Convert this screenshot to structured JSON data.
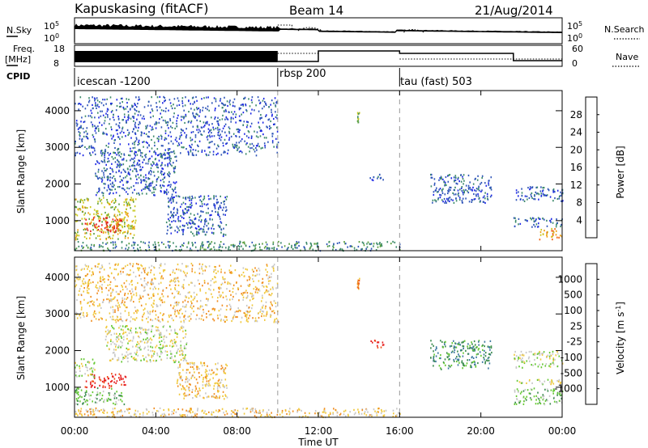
{
  "header": {
    "station": "Kapuskasing (fitACF)",
    "beam": "Beam 14",
    "date": "21/Aug/2014"
  },
  "status_panels": {
    "nsky_label": "N.Sky",
    "nsky_ticks": [
      "10^5",
      "10^0"
    ],
    "nsearch_label": "N.Search",
    "nsearch_ticks": [
      "10^5",
      "10^0"
    ],
    "freq_label": "Freq.",
    "freq_unit": "[MHz]",
    "freq_ticks": [
      "18",
      "8"
    ],
    "nave_label": "Nave",
    "nave_ticks": [
      "60",
      "0"
    ],
    "cpid_label": "CPID",
    "modes": [
      {
        "name": "icescan -1200",
        "start_hour": 0,
        "end_hour": 10
      },
      {
        "name": "rbsp 200",
        "start_hour": 10,
        "end_hour": 16
      },
      {
        "name": "tau (fast) 503",
        "start_hour": 16,
        "end_hour": 24
      }
    ]
  },
  "chart_data": [
    {
      "type": "heatmap",
      "name": "power",
      "ylabel": "Slant Range [km]",
      "yticks": [
        1000,
        2000,
        3000,
        4000
      ],
      "ylim": [
        180,
        4550
      ],
      "xlim": [
        0,
        24
      ],
      "colorbar_label": "Power [dB]",
      "colorbar_ticks": [
        "4",
        "8",
        "12",
        "16",
        "20",
        "24",
        "28"
      ],
      "colorbar_colors": [
        "#1e28e6",
        "#2f55b8",
        "#3c8a6a",
        "#5ca040",
        "#c8c81e",
        "#f0a014",
        "#f06414",
        "#e61e1e"
      ],
      "echo_regions": [
        {
          "x": [
            0.0,
            3.0
          ],
          "y": [
            500,
            1650
          ],
          "level": 4
        },
        {
          "x": [
            0.5,
            2.3
          ],
          "y": [
            700,
            1100
          ],
          "level": 7
        },
        {
          "x": [
            1.0,
            5.0
          ],
          "y": [
            1700,
            2900
          ],
          "level": 1
        },
        {
          "x": [
            4.5,
            7.5
          ],
          "y": [
            600,
            1700
          ],
          "level": 1
        },
        {
          "x": [
            0.0,
            16.0
          ],
          "y": [
            200,
            450
          ],
          "level": 2
        },
        {
          "x": [
            21.6,
            24.0
          ],
          "y": [
            1550,
            1950
          ],
          "level": 1
        },
        {
          "x": [
            21.6,
            24.0
          ],
          "y": [
            850,
            1100
          ],
          "level": 1
        },
        {
          "x": [
            22.8,
            24.0
          ],
          "y": [
            500,
            800
          ],
          "level": 5
        },
        {
          "x": [
            14.5,
            15.2
          ],
          "y": [
            2100,
            2300
          ],
          "level": 1
        },
        {
          "x": [
            13.9,
            14.0
          ],
          "y": [
            3650,
            4000
          ],
          "level": 3
        },
        {
          "x": [
            17.5,
            20.5
          ],
          "y": [
            1500,
            2300
          ],
          "level": 1
        },
        {
          "x": [
            0.0,
            10.0
          ],
          "y": [
            2800,
            4400
          ],
          "level": 1
        }
      ]
    },
    {
      "type": "heatmap",
      "name": "velocity",
      "ylabel": "Slant Range [km]",
      "xlabel": "Time UT",
      "xticks": [
        "00:00",
        "04:00",
        "08:00",
        "12:00",
        "16:00",
        "20:00",
        "00:00"
      ],
      "yticks": [
        1000,
        2000,
        3000,
        4000
      ],
      "ylim": [
        180,
        4550
      ],
      "xlim": [
        0,
        24
      ],
      "colorbar_label": "Velocity [m s^-1]",
      "colorbar_ticks": [
        "1000",
        "500",
        "100",
        "25",
        "-25",
        "-100",
        "-500",
        "-1000"
      ],
      "colorbar_colors": [
        "#1e3cc8",
        "#3c78a0",
        "#3c8c50",
        "#64c832",
        "#c8c8c8",
        "#f0c83c",
        "#f08c1e",
        "#f05014",
        "#e61e1e"
      ],
      "echo_regions": [
        {
          "x": [
            0.0,
            2.5
          ],
          "y": [
            550,
            1000
          ],
          "level": 3
        },
        {
          "x": [
            0.5,
            2.5
          ],
          "y": [
            1000,
            1400
          ],
          "level": 8
        },
        {
          "x": [
            0.0,
            1.0
          ],
          "y": [
            1300,
            1800
          ],
          "level": 4
        },
        {
          "x": [
            1.5,
            5.5
          ],
          "y": [
            1700,
            2700
          ],
          "level": 4
        },
        {
          "x": [
            5.0,
            7.5
          ],
          "y": [
            700,
            1700
          ],
          "level": 5
        },
        {
          "x": [
            0.0,
            16.0
          ],
          "y": [
            200,
            450
          ],
          "level": 5
        },
        {
          "x": [
            21.6,
            24.0
          ],
          "y": [
            1550,
            2000
          ],
          "level": 4
        },
        {
          "x": [
            21.6,
            24.0
          ],
          "y": [
            1100,
            1250
          ],
          "level": 4
        },
        {
          "x": [
            21.6,
            24.0
          ],
          "y": [
            550,
            1000
          ],
          "level": 3
        },
        {
          "x": [
            14.5,
            15.2
          ],
          "y": [
            2100,
            2300
          ],
          "level": 8
        },
        {
          "x": [
            13.9,
            14.0
          ],
          "y": [
            3650,
            4000
          ],
          "level": 6
        },
        {
          "x": [
            17.5,
            20.5
          ],
          "y": [
            1500,
            2300
          ],
          "level": 2
        },
        {
          "x": [
            0.0,
            10.0
          ],
          "y": [
            2800,
            4400
          ],
          "level": 5
        }
      ]
    }
  ]
}
